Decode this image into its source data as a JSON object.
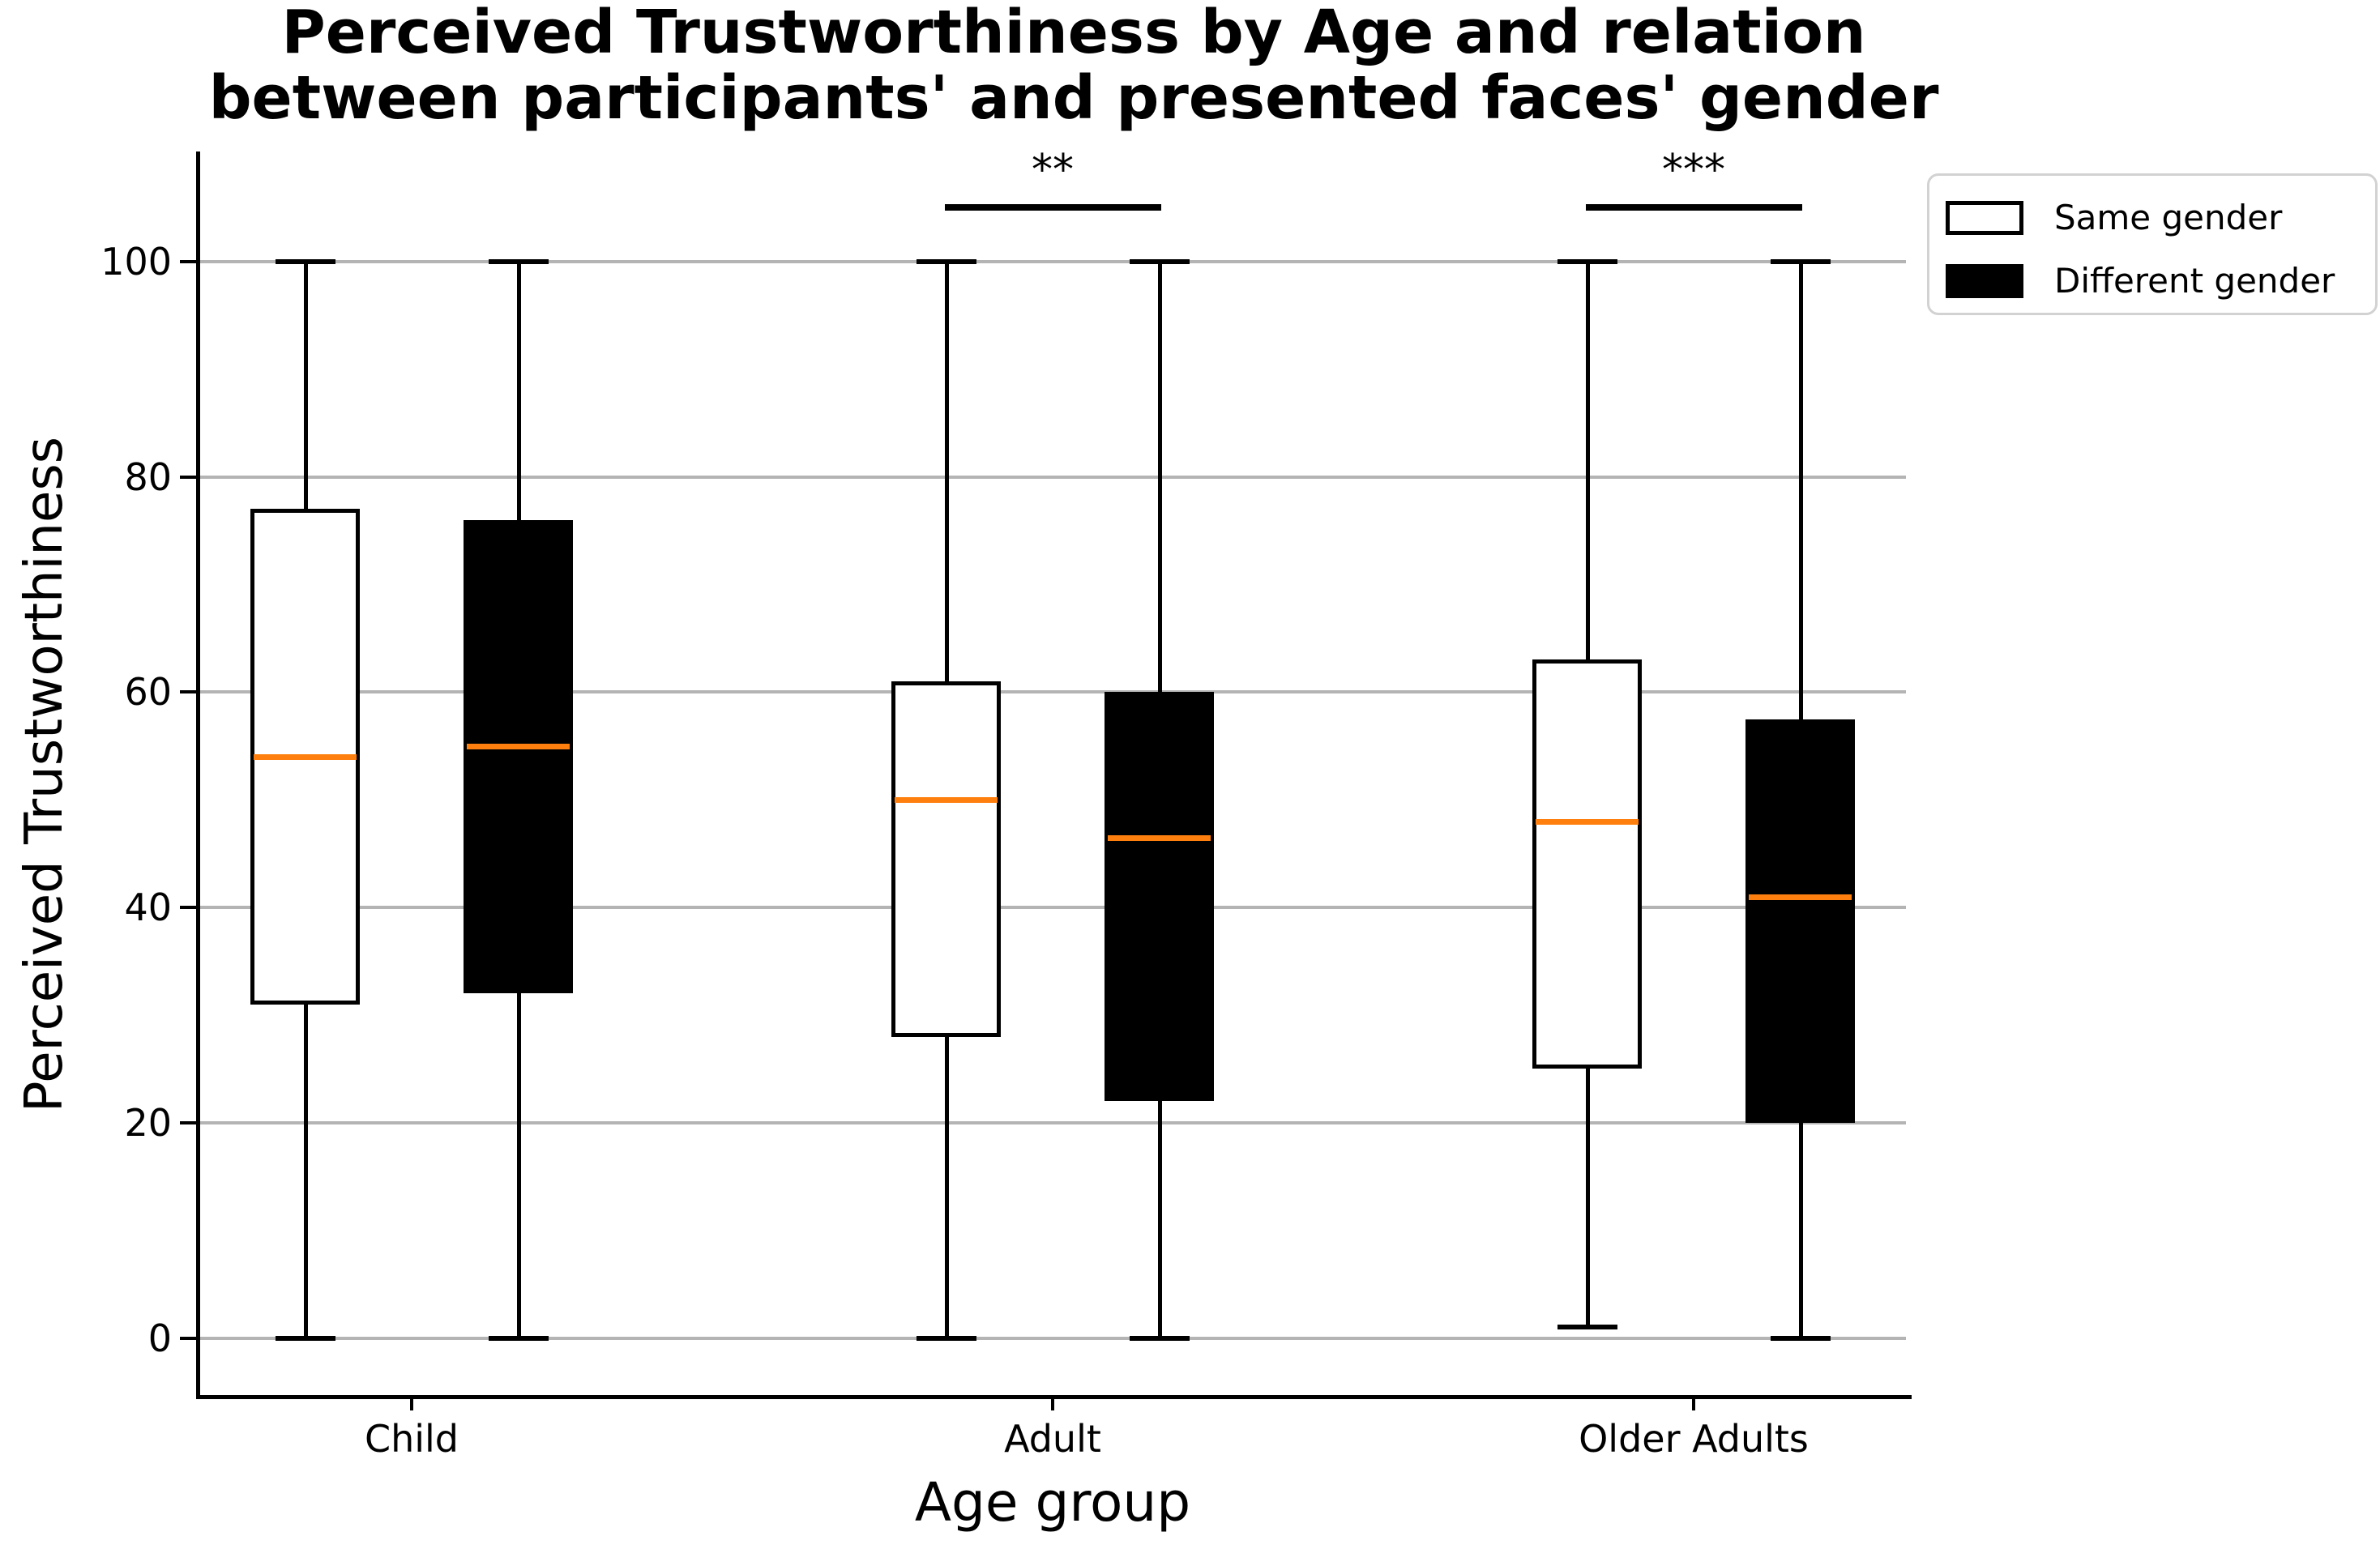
{
  "figure": {
    "background": "#ffffff"
  },
  "chart_data": {
    "type": "boxplot",
    "title_lines": [
      "Perceived Trustworthiness by Age and relation",
      "between participants' and presented faces' gender"
    ],
    "xlabel": "Age group",
    "ylabel": "Perceived Trustworthiness",
    "categories": [
      "Child",
      "Adult",
      "Older Adults"
    ],
    "yticks": [
      0,
      20,
      40,
      60,
      80,
      100
    ],
    "ylim": [
      -5,
      110
    ],
    "grid": true,
    "grid_color": "#b4b4b4",
    "median_color": "#ff7f0e",
    "box_edge_color": "#000000",
    "series": [
      {
        "name": "Same gender",
        "fill": "#ffffff",
        "boxes": [
          {
            "category": "Child",
            "whislo": 0,
            "q1": 31,
            "med": 54,
            "q3": 77,
            "whishi": 100
          },
          {
            "category": "Adult",
            "whislo": 0,
            "q1": 28,
            "med": 50,
            "q3": 61,
            "whishi": 100
          },
          {
            "category": "Older Adults",
            "whislo": 1,
            "q1": 25,
            "med": 48,
            "q3": 63,
            "whishi": 100
          }
        ]
      },
      {
        "name": "Different gender",
        "fill": "#000000",
        "boxes": [
          {
            "category": "Child",
            "whislo": 0,
            "q1": 32,
            "med": 55,
            "q3": 76,
            "whishi": 100
          },
          {
            "category": "Adult",
            "whislo": 0,
            "q1": 22,
            "med": 46.5,
            "q3": 60,
            "whishi": 100
          },
          {
            "category": "Older Adults",
            "whislo": 0,
            "q1": 20,
            "med": 41,
            "q3": 57.5,
            "whishi": 100
          }
        ]
      }
    ],
    "annotations": [
      {
        "group": "Adult",
        "label": "**"
      },
      {
        "group": "Older Adults",
        "label": "***"
      }
    ],
    "legend": {
      "position": "upper right",
      "entries": [
        "Same gender",
        "Different gender"
      ]
    }
  }
}
